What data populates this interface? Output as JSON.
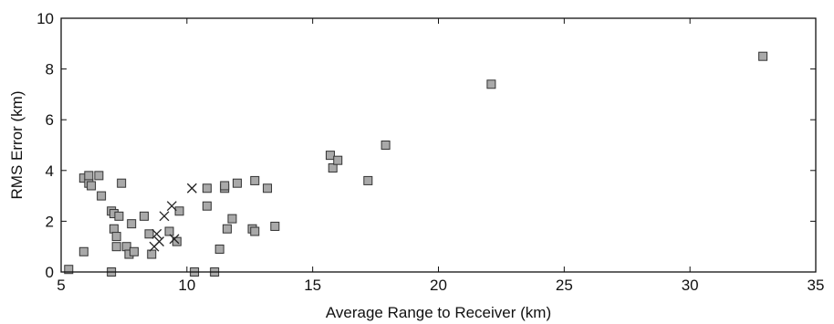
{
  "chart_data": {
    "type": "scatter",
    "title": "",
    "xlabel": "Average Range to Receiver (km)",
    "ylabel": "RMS Error (km)",
    "xlim": [
      5,
      35
    ],
    "ylim": [
      0,
      10
    ],
    "xticks": [
      5,
      10,
      15,
      20,
      25,
      30,
      35
    ],
    "yticks": [
      0,
      2,
      4,
      6,
      8,
      10
    ],
    "grid": false,
    "legend": "none",
    "series": [
      {
        "marker": "square",
        "color": "#a9a9a9",
        "points": [
          [
            5.3,
            0.1
          ],
          [
            5.9,
            0.8
          ],
          [
            5.9,
            3.7
          ],
          [
            6.1,
            3.5
          ],
          [
            6.1,
            3.8
          ],
          [
            6.2,
            3.4
          ],
          [
            6.5,
            3.8
          ],
          [
            6.6,
            3.0
          ],
          [
            7.0,
            0.0
          ],
          [
            7.0,
            2.4
          ],
          [
            7.1,
            2.3
          ],
          [
            7.1,
            1.7
          ],
          [
            7.2,
            1.4
          ],
          [
            7.2,
            1.0
          ],
          [
            7.3,
            2.2
          ],
          [
            7.4,
            3.5
          ],
          [
            7.6,
            1.0
          ],
          [
            7.7,
            0.7
          ],
          [
            7.8,
            1.9
          ],
          [
            7.9,
            0.8
          ],
          [
            8.3,
            2.2
          ],
          [
            8.5,
            1.5
          ],
          [
            8.6,
            0.7
          ],
          [
            9.3,
            1.6
          ],
          [
            9.6,
            1.2
          ],
          [
            9.7,
            2.4
          ],
          [
            10.3,
            0.0
          ],
          [
            10.8,
            3.3
          ],
          [
            10.8,
            2.6
          ],
          [
            11.1,
            0.0
          ],
          [
            11.3,
            0.9
          ],
          [
            11.5,
            3.3
          ],
          [
            11.5,
            3.4
          ],
          [
            11.6,
            1.7
          ],
          [
            11.8,
            2.1
          ],
          [
            12.0,
            3.5
          ],
          [
            12.6,
            1.7
          ],
          [
            12.7,
            3.6
          ],
          [
            12.7,
            1.6
          ],
          [
            13.2,
            3.3
          ],
          [
            13.5,
            1.8
          ],
          [
            15.7,
            4.6
          ],
          [
            15.8,
            4.1
          ],
          [
            16.0,
            4.4
          ],
          [
            17.2,
            3.6
          ],
          [
            17.9,
            5.0
          ],
          [
            22.1,
            7.4
          ],
          [
            32.9,
            8.5
          ]
        ]
      },
      {
        "marker": "x",
        "color": "#222222",
        "points": [
          [
            8.7,
            1.0
          ],
          [
            8.8,
            1.5
          ],
          [
            8.9,
            1.2
          ],
          [
            9.1,
            2.2
          ],
          [
            9.4,
            2.6
          ],
          [
            9.5,
            1.3
          ],
          [
            10.2,
            3.3
          ]
        ]
      }
    ]
  }
}
